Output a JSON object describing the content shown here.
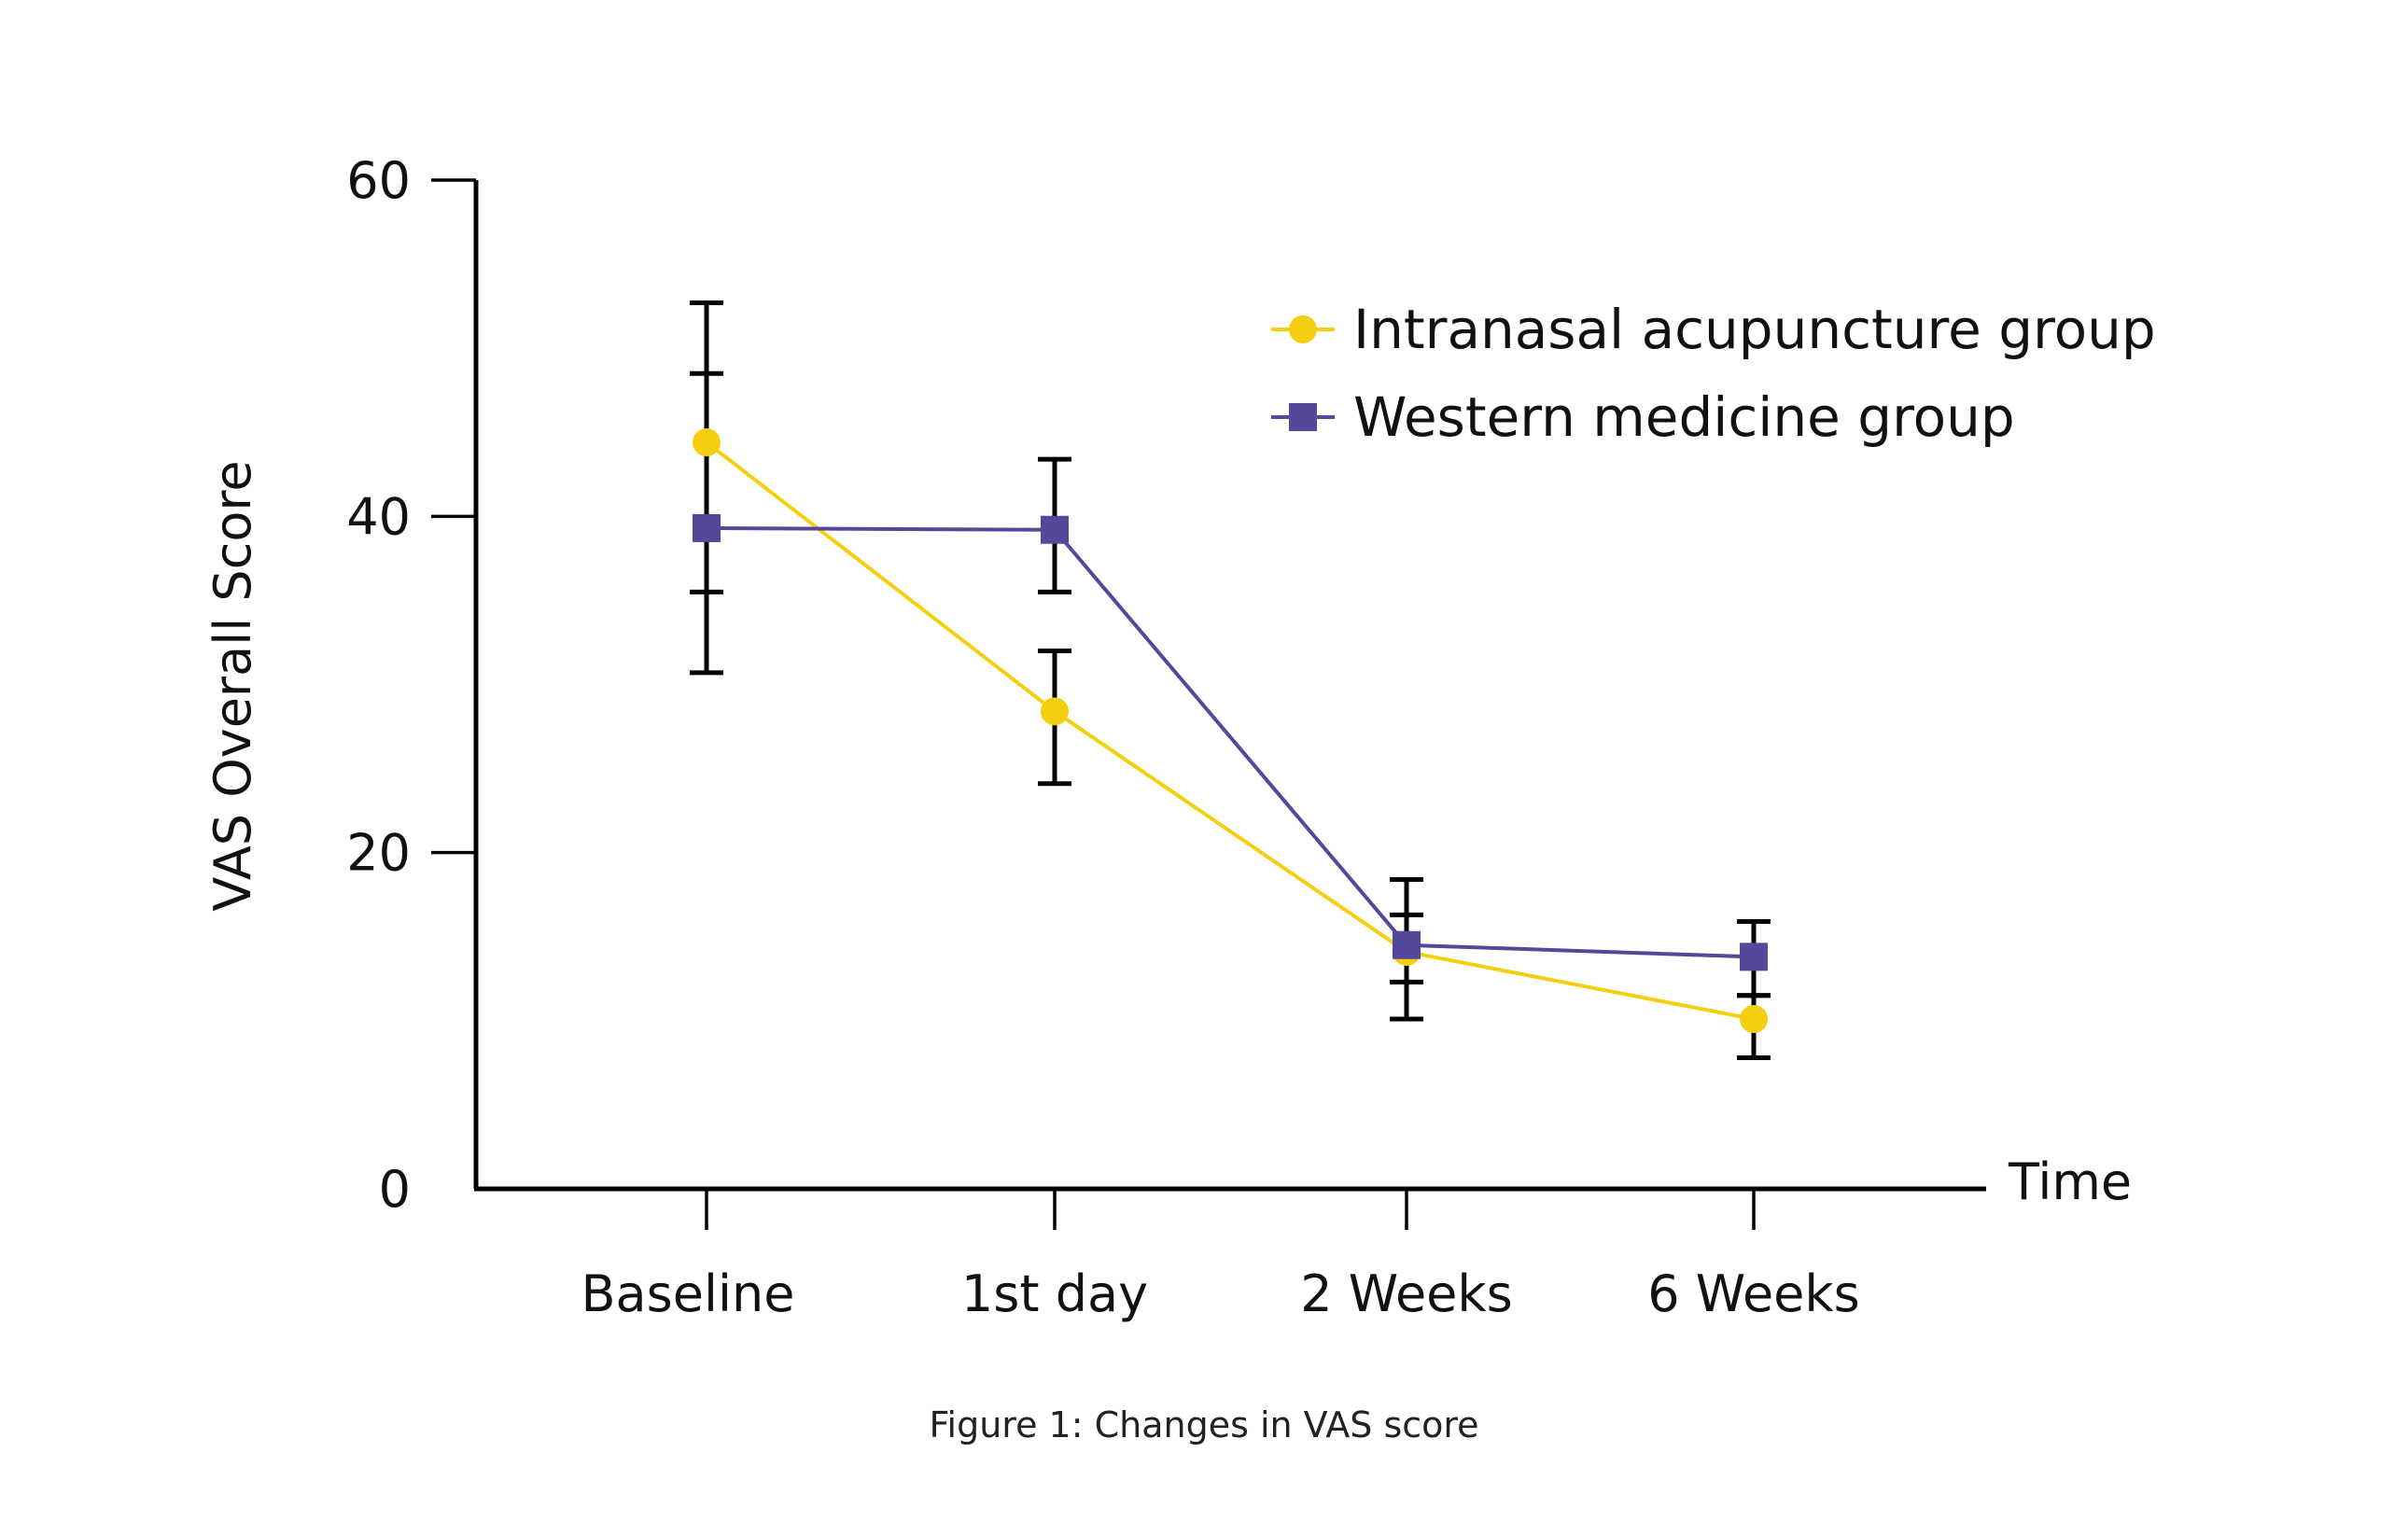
{
  "caption": "Figure 1: Changes in VAS score",
  "chart_data": {
    "type": "line",
    "title": "",
    "xlabel": "Time",
    "ylabel": "VAS Overall Score",
    "categories": [
      "Baseline",
      "1st day",
      "2 Weeks",
      "6 Weeks"
    ],
    "ylim": [
      0,
      60
    ],
    "yticks": [
      0,
      20,
      40,
      60
    ],
    "grid": false,
    "legend_position": "top-right",
    "series": [
      {
        "name": "Intranasal acupuncture group",
        "color": "#F5CF0F",
        "marker": "circle",
        "values": [
          44.4,
          28.4,
          14.1,
          10.1
        ],
        "error_low": [
          35.5,
          24.1,
          10.1,
          7.8
        ],
        "error_high": [
          52.7,
          32.0,
          18.4,
          11.5
        ]
      },
      {
        "name": "Western medicine group",
        "color": "#55489A",
        "marker": "square",
        "values": [
          39.3,
          39.2,
          14.5,
          13.8
        ],
        "error_low": [
          30.7,
          35.5,
          12.3,
          11.5
        ],
        "error_high": [
          48.5,
          43.4,
          16.3,
          15.9
        ]
      }
    ]
  }
}
